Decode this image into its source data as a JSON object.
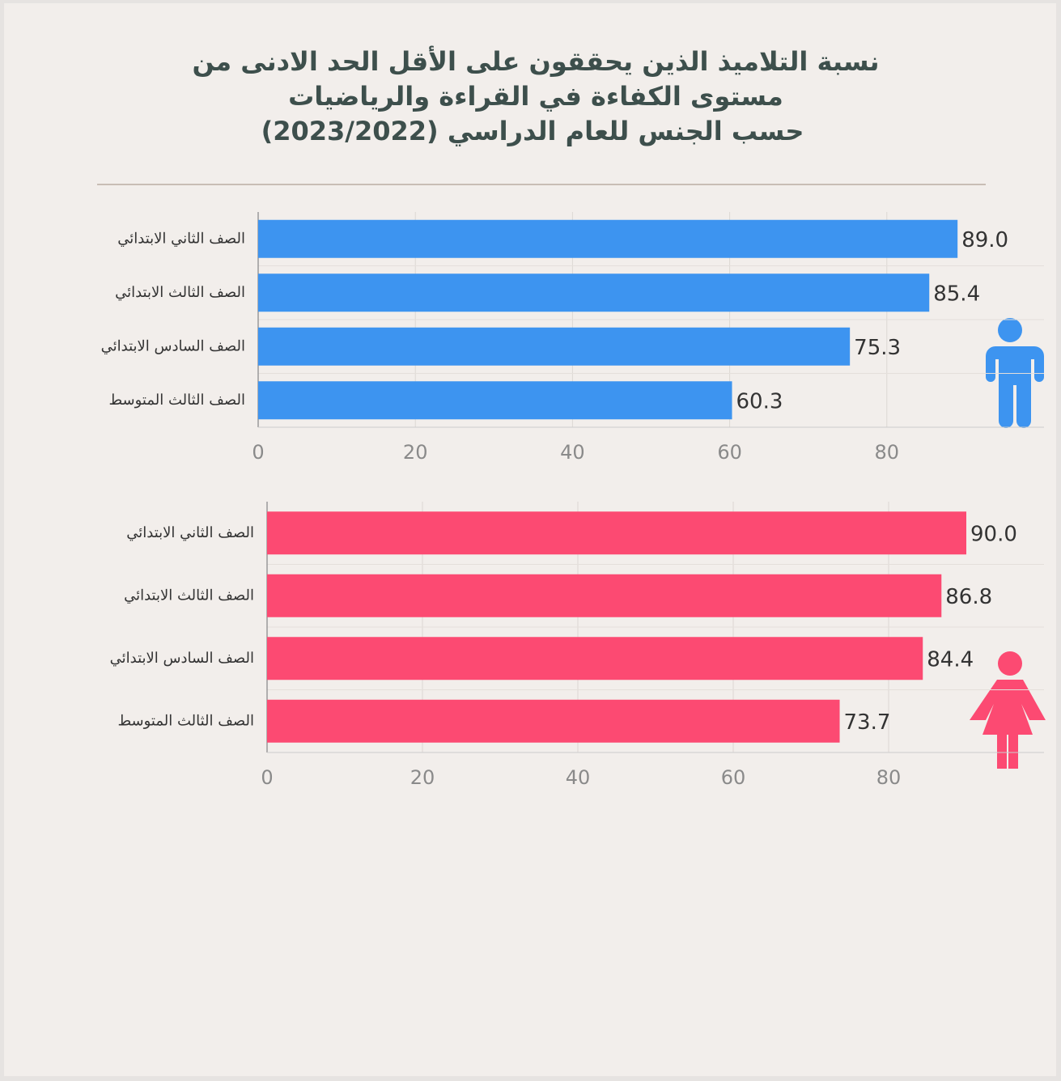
{
  "title": [
    "نسبة التلاميذ الذين يحققون على الأقل الحد الادنى من",
    "مستوى الكفاءة في القراءة والرياضيات",
    "حسب الجنس للعام الدراسي (2023/2022)"
  ],
  "chart_data": [
    {
      "type": "bar",
      "orientation": "horizontal",
      "color": "#3d94f0",
      "categories": [
        "الصف الثاني الابتدائي",
        "الصف الثالث الابتدائي",
        "الصف السادس الابتدائي",
        "الصف الثالث المتوسط"
      ],
      "values": [
        89,
        85.4,
        75.3,
        60.3
      ],
      "value_labels": [
        "89.0",
        "85.4",
        "75.3",
        "60.3"
      ],
      "xlim": [
        0,
        100
      ],
      "xticks": [
        0,
        20,
        40,
        60,
        80
      ],
      "grid": true
    },
    {
      "type": "bar",
      "orientation": "horizontal",
      "color": "#fc4a72",
      "categories": [
        "الصف الثاني الابتدائي",
        "الصف الثالث الابتدائي",
        "الصف السادس الابتدائي",
        "الصف الثالث المتوسط"
      ],
      "values": [
        90,
        86.8,
        84.4,
        73.7
      ],
      "value_labels": [
        "90.0",
        "86.8",
        "84.4",
        "73.7"
      ],
      "xlim": [
        0,
        100
      ],
      "xticks": [
        0,
        20,
        40,
        60,
        80
      ],
      "grid": true
    }
  ]
}
